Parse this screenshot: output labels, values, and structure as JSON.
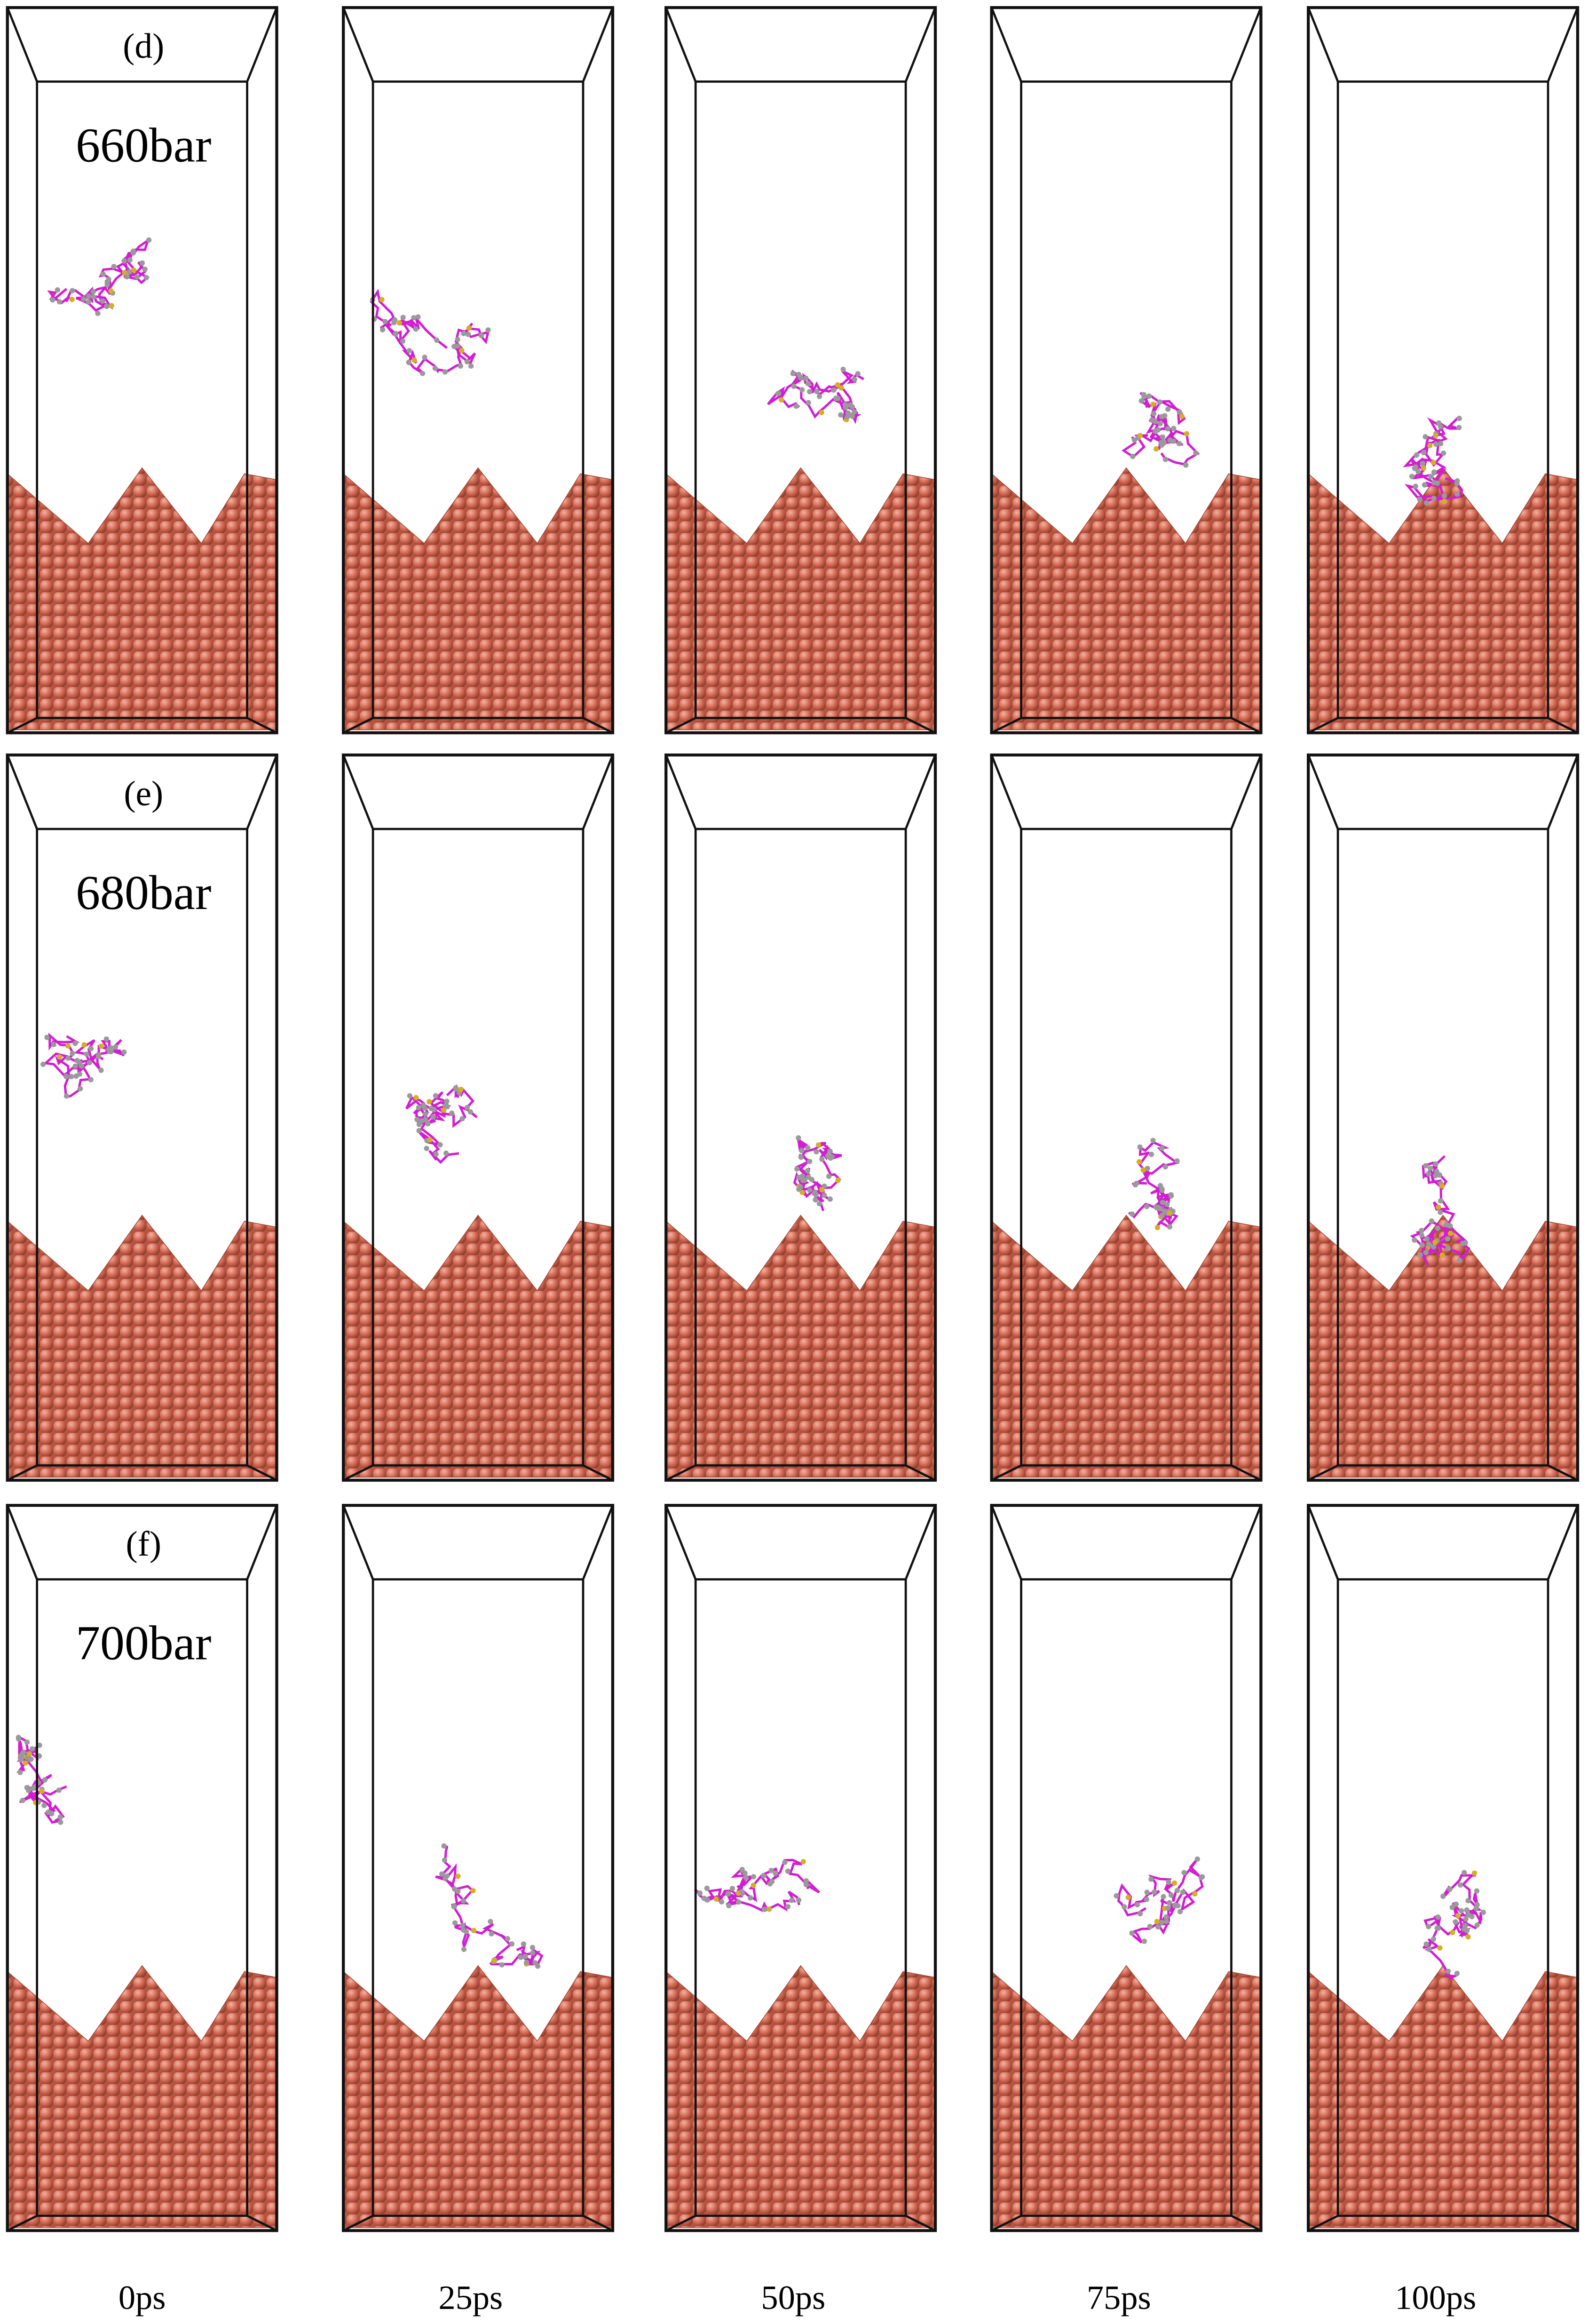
{
  "panels": [
    {
      "label": "(d)",
      "pressure": "660bar"
    },
    {
      "label": "(e)",
      "pressure": "680bar"
    },
    {
      "label": "(f)",
      "pressure": "700bar"
    }
  ],
  "times": [
    "0ps",
    "25ps",
    "50ps",
    "75ps",
    "100ps"
  ]
}
